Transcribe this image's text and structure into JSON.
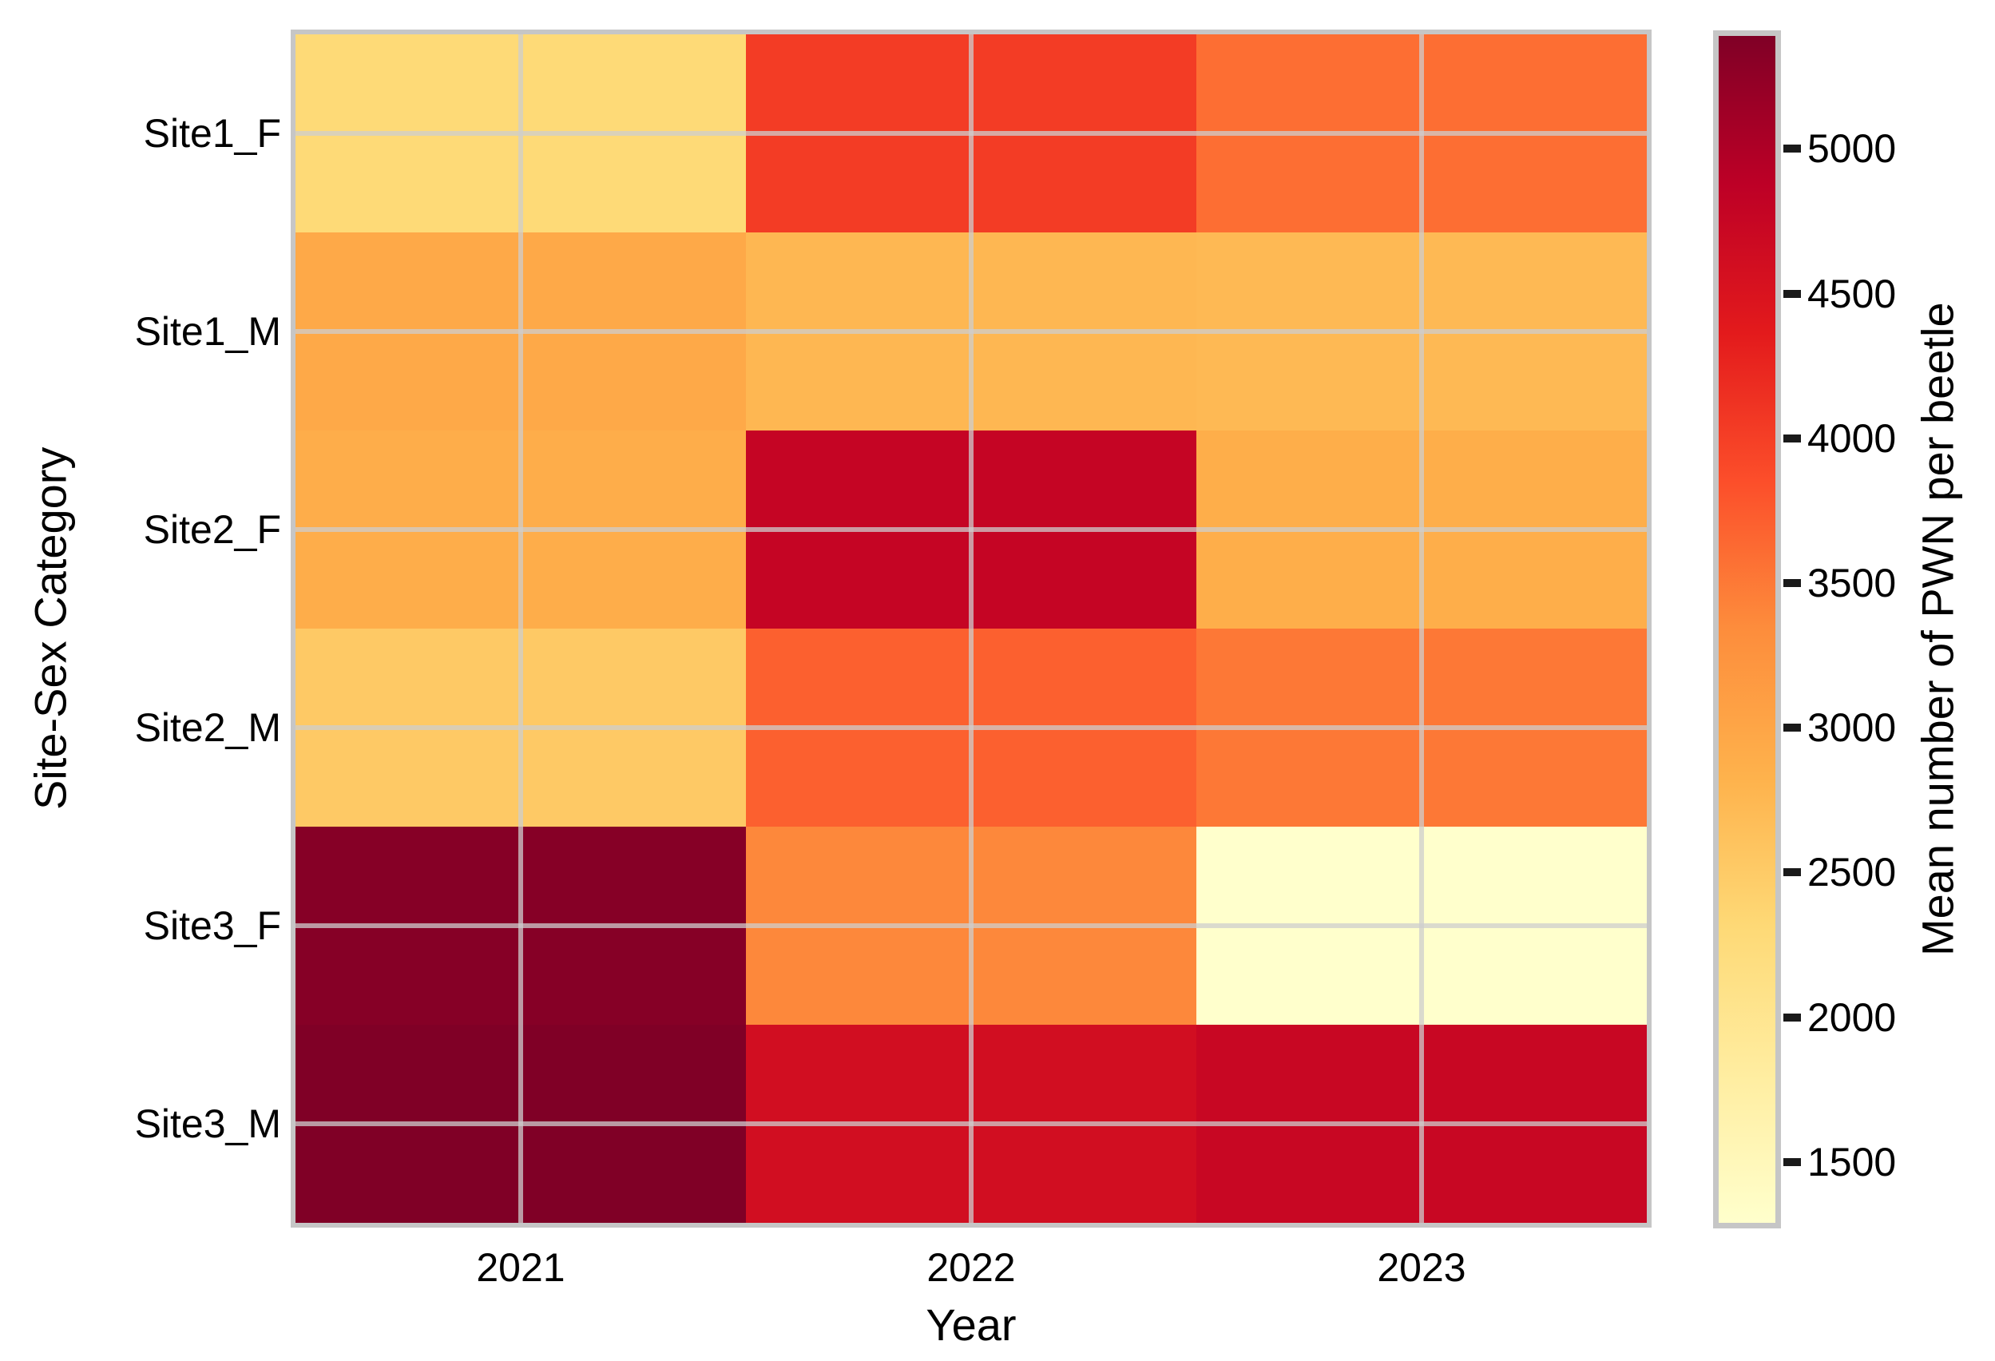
{
  "chart_data": {
    "type": "heatmap",
    "x_categories": [
      "2021",
      "2022",
      "2023"
    ],
    "y_categories": [
      "Site1_F",
      "Site1_M",
      "Site2_F",
      "Site2_M",
      "Site3_F",
      "Site3_M"
    ],
    "series": [
      {
        "name": "Site1_F",
        "values": [
          2300,
          4030,
          3590
        ]
      },
      {
        "name": "Site1_M",
        "values": [
          2950,
          2760,
          2730
        ]
      },
      {
        "name": "Site2_F",
        "values": [
          2900,
          4770,
          2880
        ]
      },
      {
        "name": "Site2_M",
        "values": [
          2520,
          3710,
          3510
        ]
      },
      {
        "name": "Site3_F",
        "values": [
          5340,
          3380,
          1290
        ]
      },
      {
        "name": "Site3_M",
        "values": [
          5390,
          4610,
          4730
        ]
      }
    ],
    "title": "",
    "xlabel": "Year",
    "ylabel": "Site-Sex Category",
    "colormap": "YlOrRd",
    "grid": true,
    "legend_position": "right-colorbar",
    "colorbar": {
      "label": "Mean number of PWN per beetle",
      "tick_labels": [
        "5000",
        "4500",
        "4000",
        "3500",
        "3000",
        "2500",
        "2000",
        "1500"
      ],
      "ticks": [
        5000,
        4500,
        4000,
        3500,
        3000,
        2500,
        2000,
        1500
      ],
      "vmin": 1290,
      "vmax": 5390
    }
  },
  "colors": {
    "background": "#ffffff",
    "plot_border": "#c6c6c6",
    "gridline": "rgba(206,206,206,0.75)",
    "text": "#000000",
    "colormap_stops": [
      "#ffffcc",
      "#ffeda0",
      "#fed976",
      "#feb24c",
      "#fd8d3c",
      "#fc4e2a",
      "#e31a1c",
      "#bd0026",
      "#800026"
    ]
  }
}
